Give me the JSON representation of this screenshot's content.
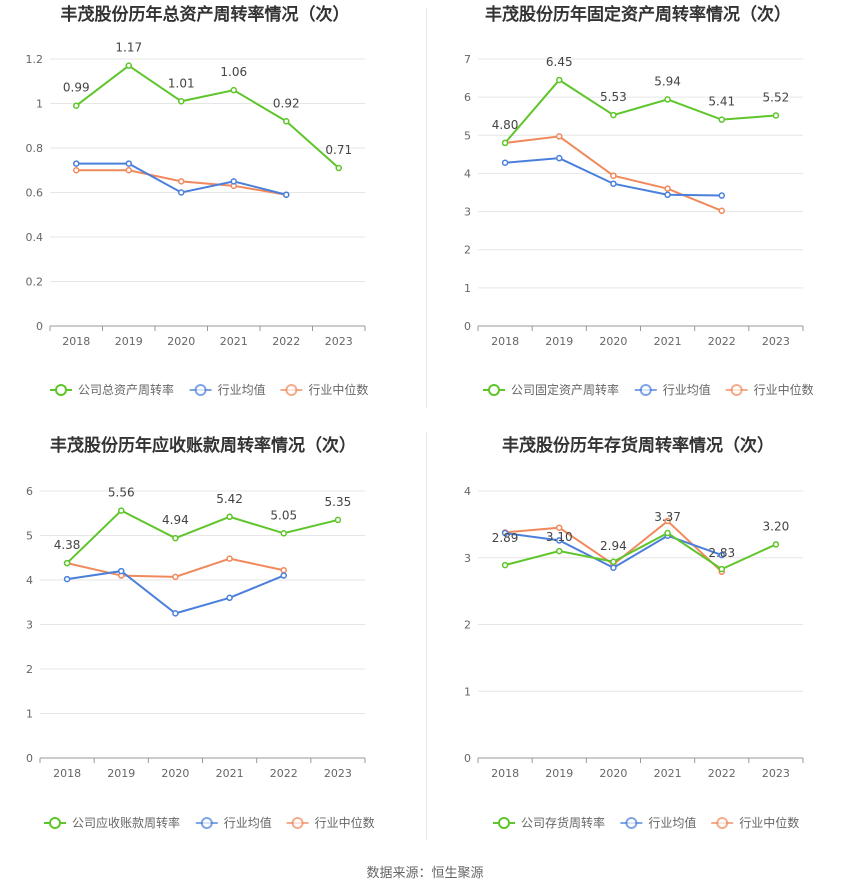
{
  "source_note": "数据来源：恒生聚源",
  "colors": {
    "company": "#5ec52a",
    "industry_avg": "#4a7fdb",
    "industry_median": "#f08a5d",
    "grid": "#e6e6e6",
    "axis": "#999999",
    "text": "#666666",
    "title": "#333333"
  },
  "chart_data": [
    {
      "type": "line",
      "title": "丰茂股份历年总资产周转率情况（次）",
      "categories": [
        "2018",
        "2019",
        "2020",
        "2021",
        "2022",
        "2023"
      ],
      "y_ticks": [
        "0",
        "0.2",
        "0.4",
        "0.6",
        "0.8",
        "1",
        "1.2"
      ],
      "ylim": [
        0,
        1.2
      ],
      "grid": true,
      "legend_position": "bottom",
      "series": [
        {
          "name": "公司总资产周转率",
          "color_key": "company",
          "values": [
            0.99,
            1.17,
            1.01,
            1.06,
            0.92,
            0.71
          ],
          "labels": [
            "0.99",
            "1.17",
            "1.01",
            "1.06",
            "0.92",
            "0.71"
          ]
        },
        {
          "name": "行业均值",
          "color_key": "industry_avg",
          "values": [
            0.73,
            0.73,
            0.6,
            0.65,
            0.59,
            null
          ]
        },
        {
          "name": "行业中位数",
          "color_key": "industry_median",
          "values": [
            0.7,
            0.7,
            0.65,
            0.63,
            0.59,
            null
          ]
        }
      ]
    },
    {
      "type": "line",
      "title": "丰茂股份历年固定资产周转率情况（次）",
      "categories": [
        "2018",
        "2019",
        "2020",
        "2021",
        "2022",
        "2023"
      ],
      "y_ticks": [
        "0",
        "1",
        "2",
        "3",
        "4",
        "5",
        "6",
        "7"
      ],
      "ylim": [
        0,
        7
      ],
      "grid": true,
      "legend_position": "bottom",
      "series": [
        {
          "name": "公司固定资产周转率",
          "color_key": "company",
          "values": [
            4.8,
            6.45,
            5.53,
            5.94,
            5.41,
            5.52
          ],
          "labels": [
            "4.80",
            "6.45",
            "5.53",
            "5.94",
            "5.41",
            "5.52"
          ]
        },
        {
          "name": "行业均值",
          "color_key": "industry_avg",
          "values": [
            4.28,
            4.4,
            3.73,
            3.44,
            3.42,
            null
          ]
        },
        {
          "name": "行业中位数",
          "color_key": "industry_median",
          "values": [
            4.8,
            4.97,
            3.94,
            3.6,
            3.02,
            null
          ]
        }
      ]
    },
    {
      "type": "line",
      "title": "丰茂股份历年应收账款周转率情况（次）",
      "categories": [
        "2018",
        "2019",
        "2020",
        "2021",
        "2022",
        "2023"
      ],
      "y_ticks": [
        "0",
        "1",
        "2",
        "3",
        "4",
        "5",
        "6"
      ],
      "ylim": [
        0,
        6
      ],
      "grid": true,
      "legend_position": "bottom",
      "series": [
        {
          "name": "公司应收账款周转率",
          "color_key": "company",
          "values": [
            4.38,
            5.56,
            4.94,
            5.42,
            5.05,
            5.35
          ],
          "labels": [
            "4.38",
            "5.56",
            "4.94",
            "5.42",
            "5.05",
            "5.35"
          ]
        },
        {
          "name": "行业均值",
          "color_key": "industry_avg",
          "values": [
            4.02,
            4.2,
            3.25,
            3.6,
            4.1,
            null
          ]
        },
        {
          "name": "行业中位数",
          "color_key": "industry_median",
          "values": [
            4.38,
            4.1,
            4.07,
            4.48,
            4.22,
            null
          ]
        }
      ]
    },
    {
      "type": "line",
      "title": "丰茂股份历年存货周转率情况（次）",
      "categories": [
        "2018",
        "2019",
        "2020",
        "2021",
        "2022",
        "2023"
      ],
      "y_ticks": [
        "0",
        "1",
        "2",
        "3",
        "4"
      ],
      "ylim": [
        0,
        4
      ],
      "grid": true,
      "legend_position": "bottom",
      "series": [
        {
          "name": "公司存货周转率",
          "color_key": "company",
          "values": [
            2.89,
            3.1,
            2.94,
            3.37,
            2.83,
            3.2
          ],
          "labels": [
            "2.89",
            "3.10",
            "2.94",
            "3.37",
            "2.83",
            "3.20"
          ]
        },
        {
          "name": "行业均值",
          "color_key": "industry_avg",
          "values": [
            3.37,
            3.26,
            2.85,
            3.33,
            3.04,
            null
          ]
        },
        {
          "name": "行业中位数",
          "color_key": "industry_median",
          "values": [
            3.38,
            3.45,
            2.9,
            3.55,
            2.79,
            null
          ]
        }
      ]
    }
  ]
}
